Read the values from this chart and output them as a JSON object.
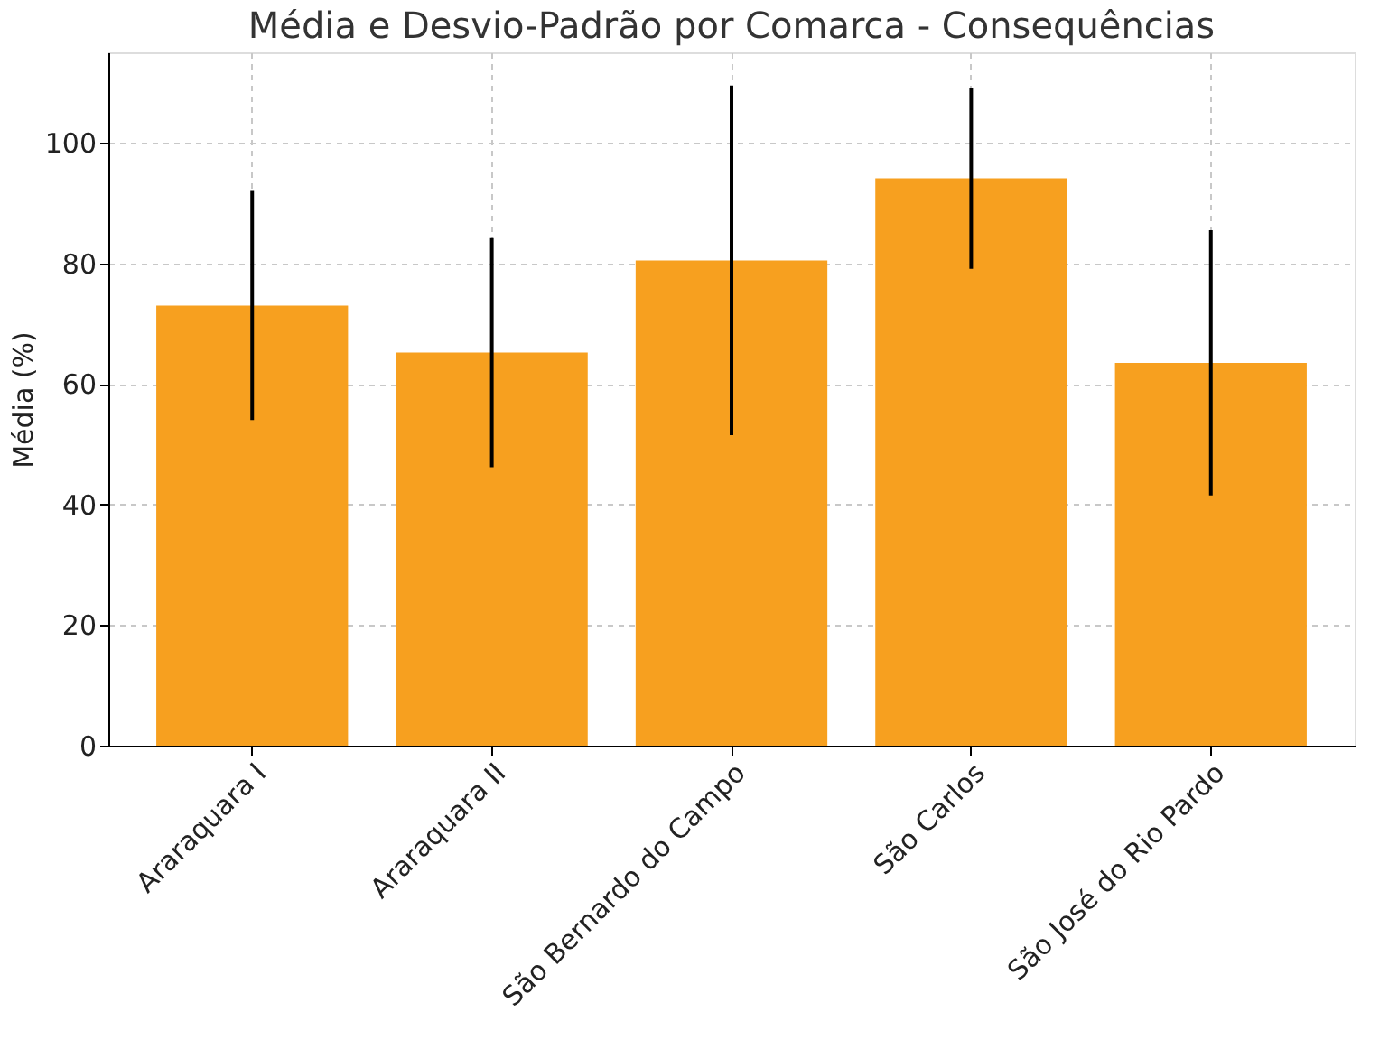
{
  "chart_data": {
    "type": "bar",
    "title": "Média e Desvio-Padrão por Comarca - Consequências",
    "ylabel": "Média (%)",
    "categories": [
      "Araraquara I",
      "Araraquara II",
      "São Bernardo do Campo",
      "São Carlos",
      "São José do Rio Pardo"
    ],
    "values": [
      73,
      65.2,
      80.5,
      94.1,
      63.5
    ],
    "errors": [
      19,
      19,
      29,
      15,
      22
    ],
    "color": "#f7a01f",
    "ylim": [
      0,
      115
    ],
    "yticks": [
      0,
      20,
      40,
      60,
      80,
      100
    ],
    "grid": true
  }
}
